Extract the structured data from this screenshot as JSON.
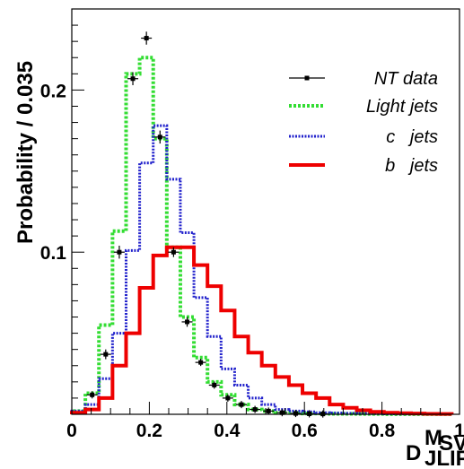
{
  "chart_data": {
    "type": "line",
    "ylabel": "Probability / 0.035",
    "xlabel": {
      "main": "D",
      "sup": "M",
      "supsub": "SV",
      "sub": "JLIP"
    },
    "xlim": [
      0,
      1
    ],
    "ylim": [
      0,
      0.25
    ],
    "x_ticks": [
      {
        "v": 0,
        "label": "0"
      },
      {
        "v": 0.2,
        "label": "0.2"
      },
      {
        "v": 0.4,
        "label": "0.4"
      },
      {
        "v": 0.6,
        "label": "0.6"
      },
      {
        "v": 0.8,
        "label": "0.8"
      },
      {
        "v": 1,
        "label": "1"
      }
    ],
    "y_ticks": [
      {
        "v": 0.1,
        "label": "0.1"
      },
      {
        "v": 0.2,
        "label": "0.2"
      }
    ],
    "bin_edges": [
      0,
      0.035,
      0.07,
      0.105,
      0.14,
      0.175,
      0.21,
      0.245,
      0.28,
      0.315,
      0.35,
      0.385,
      0.42,
      0.455,
      0.49,
      0.525,
      0.56,
      0.595,
      0.63,
      0.665,
      0.7,
      0.735,
      0.77,
      0.805,
      0.84,
      0.875,
      0.91,
      0.945,
      0.98
    ],
    "series": [
      {
        "name": "NT data",
        "style": "points",
        "color": "#000000",
        "x": [
          0.0525,
          0.0875,
          0.1225,
          0.1575,
          0.1925,
          0.2275,
          0.2625,
          0.2975,
          0.3325,
          0.3675,
          0.4025,
          0.4375,
          0.4725,
          0.5075,
          0.5425,
          0.5775,
          0.6125,
          0.6475
        ],
        "y": [
          0.012,
          0.037,
          0.1,
          0.207,
          0.232,
          0.171,
          0.1,
          0.057,
          0.032,
          0.018,
          0.01,
          0.006,
          0.003,
          0.002,
          0.001,
          0.0005,
          0.0003,
          0.0002
        ],
        "yerr": [
          0.002,
          0.003,
          0.004,
          0.004,
          0.004,
          0.004,
          0.003,
          0.003,
          0.002,
          0.002,
          0.001,
          0.001,
          0.001,
          0.001,
          0.0005,
          0.0004,
          0.0003,
          0.0002
        ]
      },
      {
        "name": "Light jets",
        "style": "hist-dotted",
        "color": "#33dd33",
        "values": [
          0.002,
          0.013,
          0.055,
          0.113,
          0.21,
          0.22,
          0.17,
          0.103,
          0.06,
          0.035,
          0.02,
          0.012,
          0.006,
          0.003,
          0.002,
          0.001,
          0.001,
          0.0005,
          0.0005,
          0.0003,
          0.0003,
          0.0002,
          0.0002,
          0.0001,
          0.0001,
          0.0001,
          0.0001,
          0.0001
        ]
      },
      {
        "name": "c   jets",
        "style": "hist-dashed",
        "color": "#2222cc",
        "values": [
          0.002,
          0.006,
          0.022,
          0.05,
          0.101,
          0.155,
          0.178,
          0.145,
          0.112,
          0.072,
          0.048,
          0.028,
          0.018,
          0.01,
          0.006,
          0.003,
          0.002,
          0.0015,
          0.001,
          0.0008,
          0.0006,
          0.0005,
          0.0004,
          0.0003,
          0.0002,
          0.0002,
          0.0001,
          0.0001
        ]
      },
      {
        "name": "b   jets",
        "style": "hist-solid",
        "color": "#ee0000",
        "values": [
          0.001,
          0.003,
          0.01,
          0.03,
          0.05,
          0.078,
          0.098,
          0.103,
          0.103,
          0.092,
          0.079,
          0.064,
          0.048,
          0.038,
          0.03,
          0.023,
          0.018,
          0.013,
          0.01,
          0.006,
          0.004,
          0.0025,
          0.0015,
          0.001,
          0.0007,
          0.0005,
          0.0003,
          0.0002
        ]
      }
    ],
    "legend_position": "top-right",
    "grid": false
  }
}
